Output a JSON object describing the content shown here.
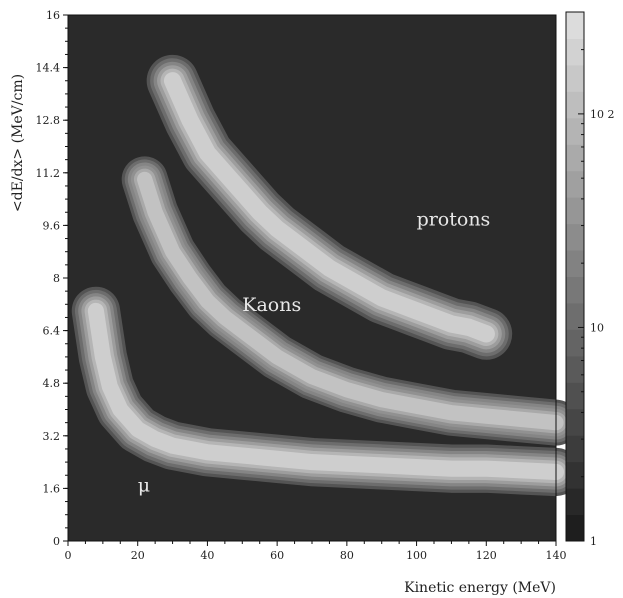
{
  "chart_data": {
    "type": "heatmap",
    "xlabel": "Kinetic energy (MeV)",
    "ylabel": "<dE/dx> (MeV/cm)",
    "xlim": [
      0,
      140
    ],
    "ylim": [
      0,
      16
    ],
    "x_ticks": [
      "0",
      "20",
      "40",
      "60",
      "80",
      "100",
      "120",
      "140"
    ],
    "y_ticks": [
      "0",
      "1.6",
      "3.2",
      "4.8",
      "6.4",
      "8",
      "9.6",
      "11.2",
      "12.8",
      "14.4",
      "16"
    ],
    "z_scale": "log",
    "z_range": [
      1,
      300
    ],
    "colorbar_labels": [
      "1",
      "10",
      "10 2"
    ],
    "background_color": "#2a2a2a",
    "annotations": [
      {
        "text": "protons",
        "x": 100,
        "y": 9.6
      },
      {
        "text": "Kaons",
        "x": 50,
        "y": 7.0
      },
      {
        "text": "μ",
        "x": 20,
        "y": 1.5
      }
    ],
    "bands": [
      {
        "particle": "protons",
        "ridge": [
          [
            30,
            14.0
          ],
          [
            35,
            12.8
          ],
          [
            40,
            11.8
          ],
          [
            45,
            11.2
          ],
          [
            50,
            10.6
          ],
          [
            55,
            10.0
          ],
          [
            60,
            9.5
          ],
          [
            65,
            9.1
          ],
          [
            70,
            8.7
          ],
          [
            75,
            8.3
          ],
          [
            80,
            8.0
          ],
          [
            85,
            7.7
          ],
          [
            90,
            7.4
          ],
          [
            95,
            7.2
          ],
          [
            100,
            7.0
          ],
          [
            105,
            6.8
          ],
          [
            110,
            6.6
          ],
          [
            115,
            6.5
          ],
          [
            120,
            6.3
          ]
        ],
        "half_width": 0.45,
        "peak": 160
      },
      {
        "particle": "Kaons",
        "ridge": [
          [
            22,
            11.0
          ],
          [
            25,
            10.0
          ],
          [
            30,
            8.8
          ],
          [
            35,
            8.0
          ],
          [
            40,
            7.3
          ],
          [
            45,
            6.8
          ],
          [
            50,
            6.4
          ],
          [
            55,
            6.0
          ],
          [
            60,
            5.6
          ],
          [
            65,
            5.3
          ],
          [
            70,
            5.0
          ],
          [
            80,
            4.6
          ],
          [
            90,
            4.3
          ],
          [
            100,
            4.1
          ],
          [
            110,
            3.9
          ],
          [
            120,
            3.8
          ],
          [
            130,
            3.7
          ],
          [
            140,
            3.6
          ]
        ],
        "half_width": 0.4,
        "peak": 90
      },
      {
        "particle": "μ",
        "ridge": [
          [
            8,
            7.0
          ],
          [
            10,
            5.6
          ],
          [
            12,
            4.7
          ],
          [
            15,
            4.0
          ],
          [
            20,
            3.4
          ],
          [
            25,
            3.1
          ],
          [
            30,
            2.9
          ],
          [
            40,
            2.7
          ],
          [
            50,
            2.6
          ],
          [
            60,
            2.5
          ],
          [
            70,
            2.4
          ],
          [
            80,
            2.35
          ],
          [
            90,
            2.3
          ],
          [
            100,
            2.25
          ],
          [
            110,
            2.2
          ],
          [
            120,
            2.2
          ],
          [
            130,
            2.15
          ],
          [
            140,
            2.1
          ]
        ],
        "half_width": 0.42,
        "peak": 140
      }
    ]
  }
}
